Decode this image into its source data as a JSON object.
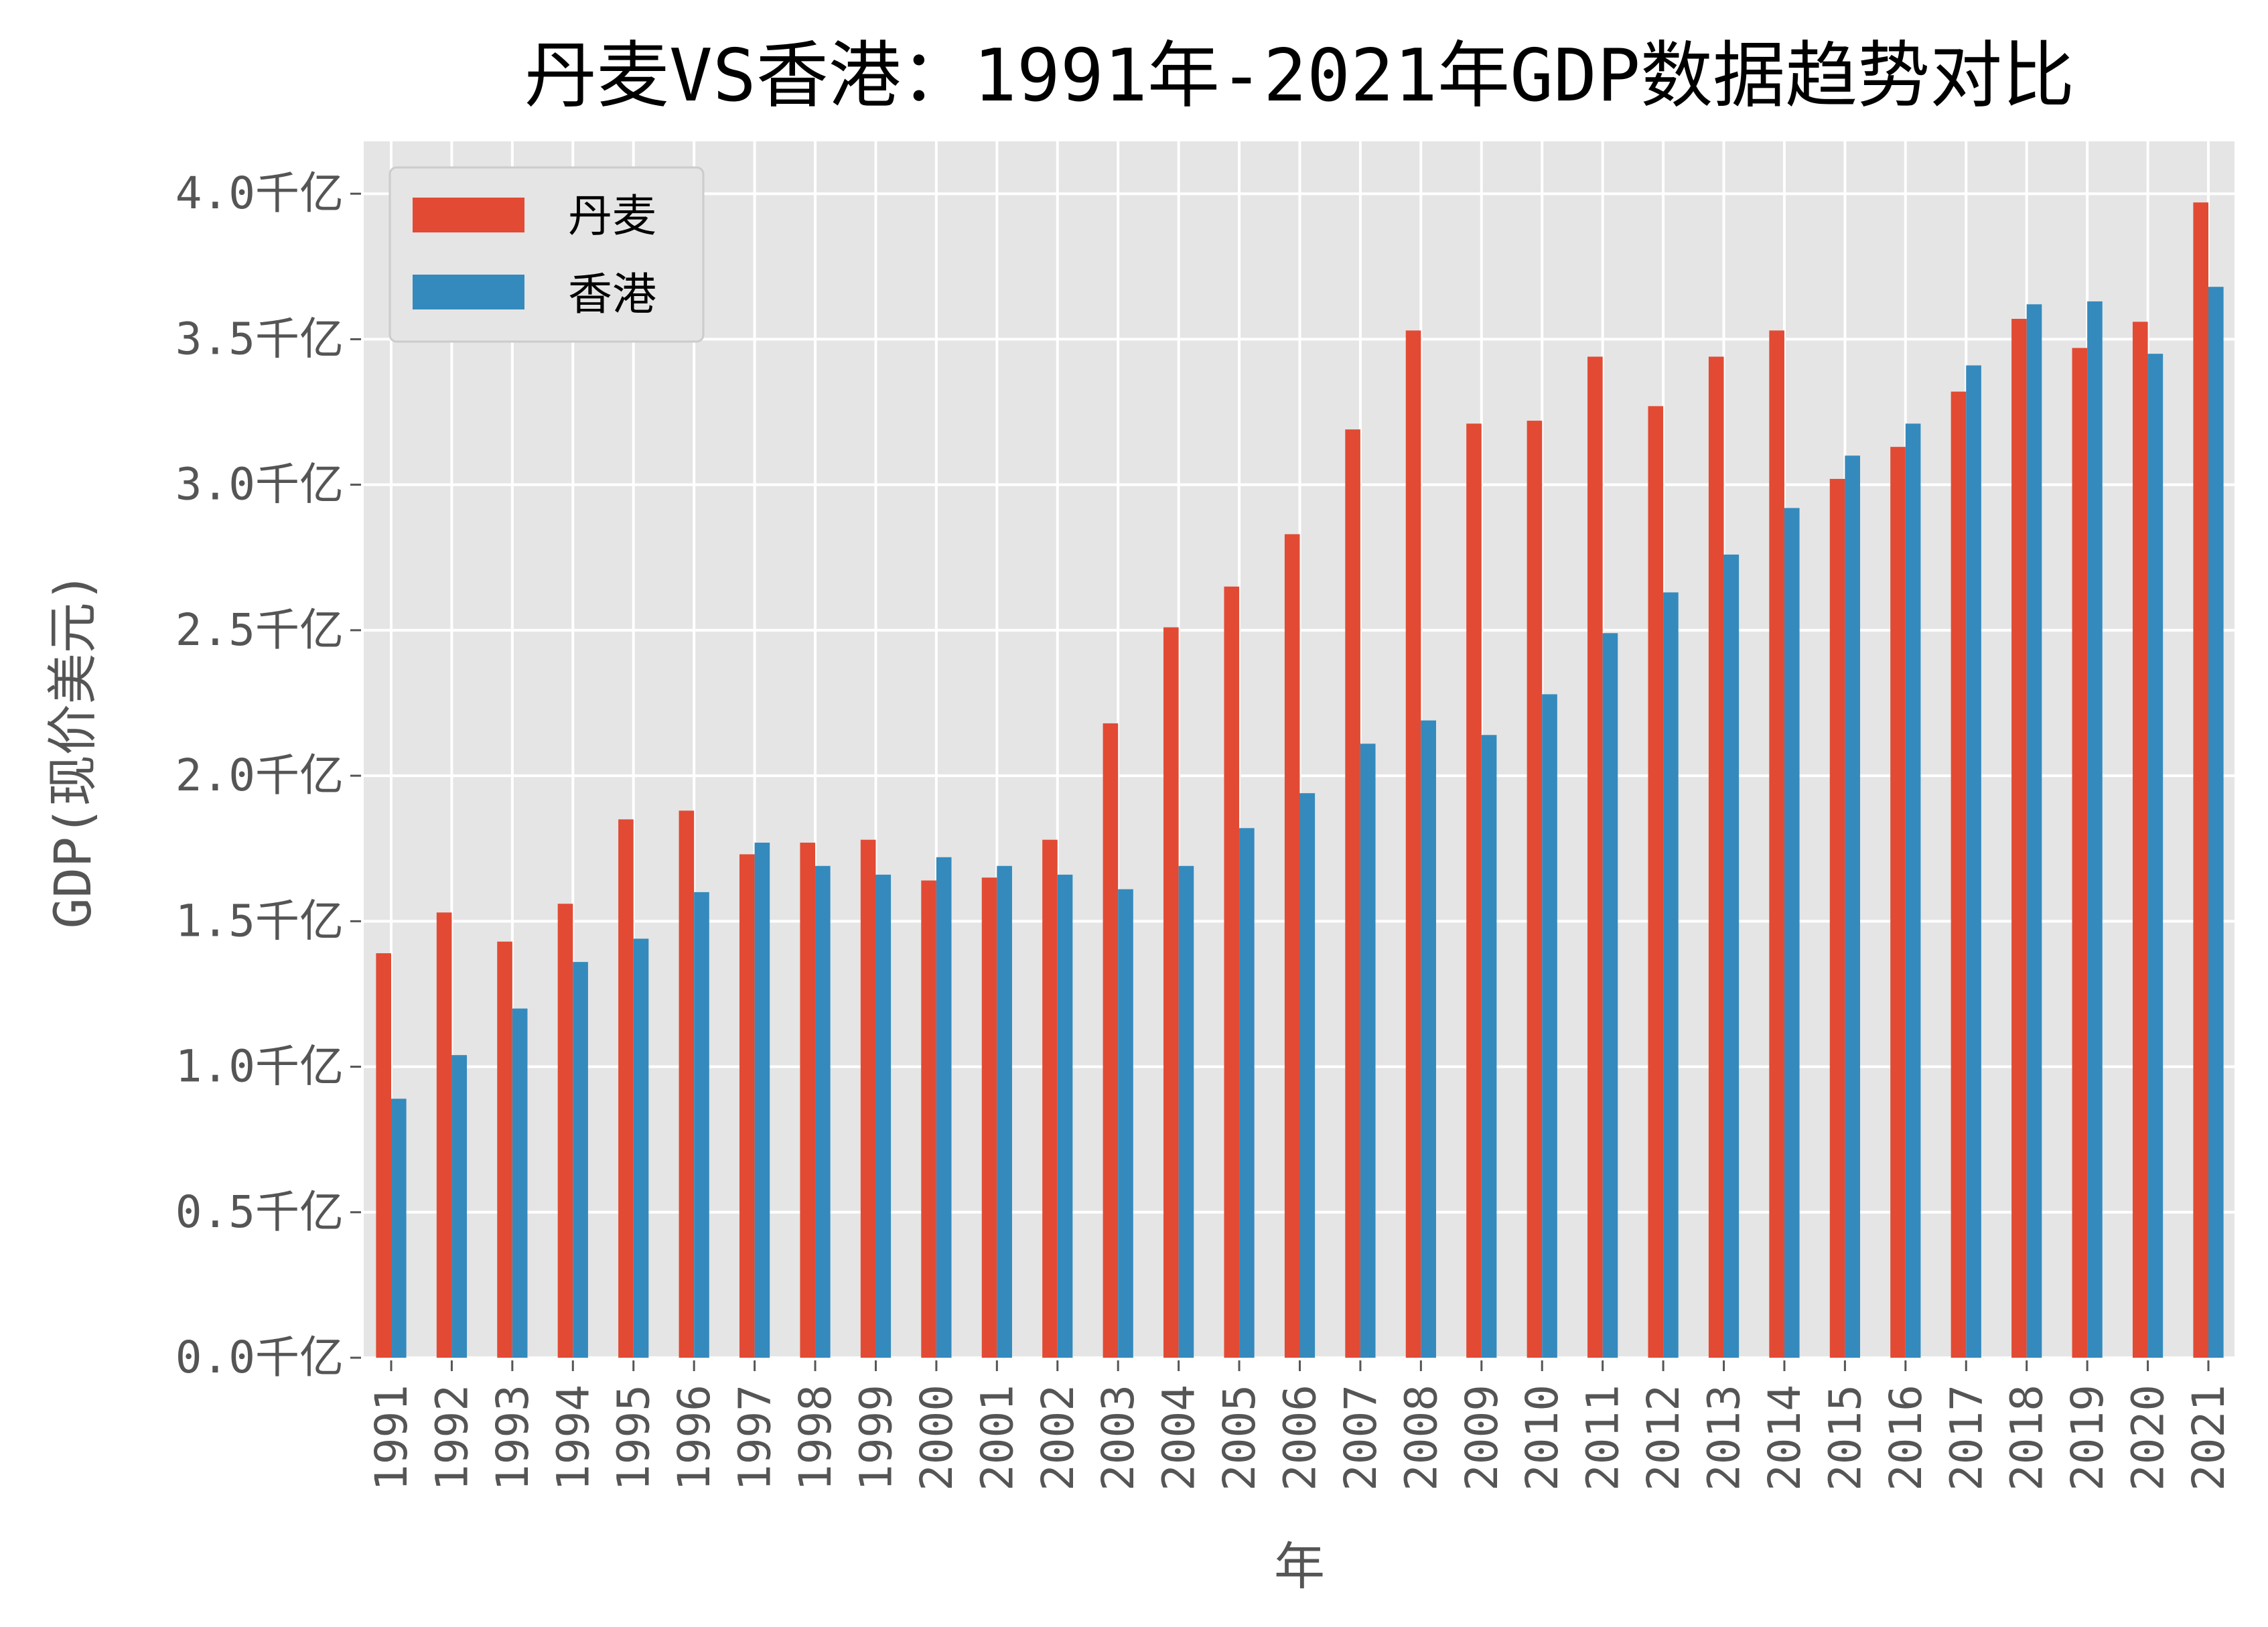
{
  "chart_data": {
    "type": "bar",
    "title": "丹麦VS香港：1991年-2021年GDP数据趋势对比",
    "xlabel": "年",
    "ylabel": "GDP(现价美元)",
    "ylim": [
      0,
      4.18
    ],
    "yticks": [
      0,
      0.5,
      1.0,
      1.5,
      2.0,
      2.5,
      3.0,
      3.5,
      4.0
    ],
    "ytick_labels": [
      "0.0千亿",
      "0.5千亿",
      "1.0千亿",
      "1.5千亿",
      "2.0千亿",
      "2.5千亿",
      "3.0千亿",
      "3.5千亿",
      "4.0千亿"
    ],
    "grid": true,
    "legend_position": "top-left",
    "categories": [
      "1991",
      "1992",
      "1993",
      "1994",
      "1995",
      "1996",
      "1997",
      "1998",
      "1999",
      "2000",
      "2001",
      "2002",
      "2003",
      "2004",
      "2005",
      "2006",
      "2007",
      "2008",
      "2009",
      "2010",
      "2011",
      "2012",
      "2013",
      "2014",
      "2015",
      "2016",
      "2017",
      "2018",
      "2019",
      "2020",
      "2021"
    ],
    "series": [
      {
        "name": "丹麦",
        "color": "#E24A33",
        "values": [
          1.39,
          1.53,
          1.43,
          1.56,
          1.85,
          1.88,
          1.73,
          1.77,
          1.78,
          1.64,
          1.65,
          1.78,
          2.18,
          2.51,
          2.65,
          2.83,
          3.19,
          3.53,
          3.21,
          3.22,
          3.44,
          3.27,
          3.44,
          3.53,
          3.02,
          3.13,
          3.32,
          3.57,
          3.47,
          3.56,
          3.97
        ]
      },
      {
        "name": "香港",
        "color": "#348ABD",
        "values": [
          0.89,
          1.04,
          1.2,
          1.36,
          1.44,
          1.6,
          1.77,
          1.69,
          1.66,
          1.72,
          1.69,
          1.66,
          1.61,
          1.69,
          1.82,
          1.94,
          2.11,
          2.19,
          2.14,
          2.28,
          2.49,
          2.63,
          2.76,
          2.92,
          3.1,
          3.21,
          3.41,
          3.62,
          3.63,
          3.45,
          3.68
        ]
      }
    ]
  }
}
